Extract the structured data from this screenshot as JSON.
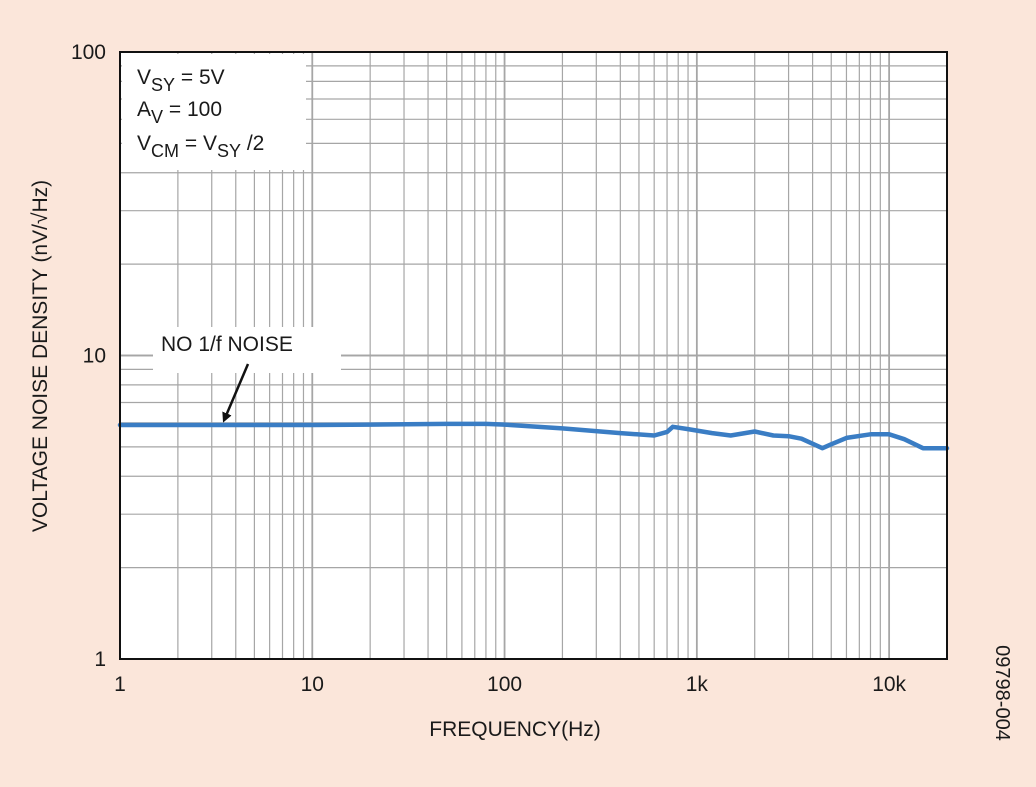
{
  "chart_data": {
    "type": "line",
    "title": "",
    "xlabel": "FREQUENCY(Hz)",
    "ylabel": "VOLTAGE NOISE DENSITY (nV/√Hz)",
    "x_scale": "log",
    "y_scale": "log",
    "xlim": [
      1,
      20000
    ],
    "ylim": [
      1,
      100
    ],
    "x_ticks": [
      {
        "value": 1,
        "label": "1"
      },
      {
        "value": 10,
        "label": "10"
      },
      {
        "value": 100,
        "label": "100"
      },
      {
        "value": 1000,
        "label": "1k"
      },
      {
        "value": 10000,
        "label": "10k"
      }
    ],
    "y_ticks": [
      {
        "value": 1,
        "label": "1"
      },
      {
        "value": 10,
        "label": "10"
      },
      {
        "value": 100,
        "label": "100"
      }
    ],
    "grid": true,
    "series": [
      {
        "name": "",
        "color": "#3a7dc4",
        "x": [
          1,
          3,
          10,
          20,
          50,
          80,
          100,
          200,
          400,
          600,
          700,
          750,
          900,
          1200,
          1500,
          2000,
          2500,
          3000,
          3500,
          4500,
          5000,
          6000,
          8000,
          10000,
          12000,
          15000,
          20000
        ],
        "y": [
          5.9,
          5.9,
          5.9,
          5.92,
          5.95,
          5.95,
          5.92,
          5.75,
          5.55,
          5.45,
          5.6,
          5.82,
          5.72,
          5.55,
          5.45,
          5.62,
          5.45,
          5.42,
          5.32,
          4.95,
          5.1,
          5.35,
          5.5,
          5.5,
          5.3,
          4.95,
          4.95
        ]
      }
    ],
    "legend": "none",
    "annotations": {
      "conditions": {
        "line1": {
          "main": "V",
          "sub": "SY",
          "rest": " = 5V"
        },
        "line2": {
          "main": "A",
          "sub": "V",
          "rest": " = 100"
        },
        "line3": {
          "main": "V",
          "sub": "CM",
          "rest": " = V",
          "sub2": "SY",
          "rest2": " /2"
        }
      },
      "callout": {
        "text": "NO 1/f NOISE",
        "arrow_target_x": 3.5
      },
      "figure_id": "09798-004"
    },
    "colors": {
      "background": "#fbe6da",
      "plot_area": "#ffffff",
      "grid": "#a6a6a6",
      "line": "#3a7dc4"
    }
  }
}
